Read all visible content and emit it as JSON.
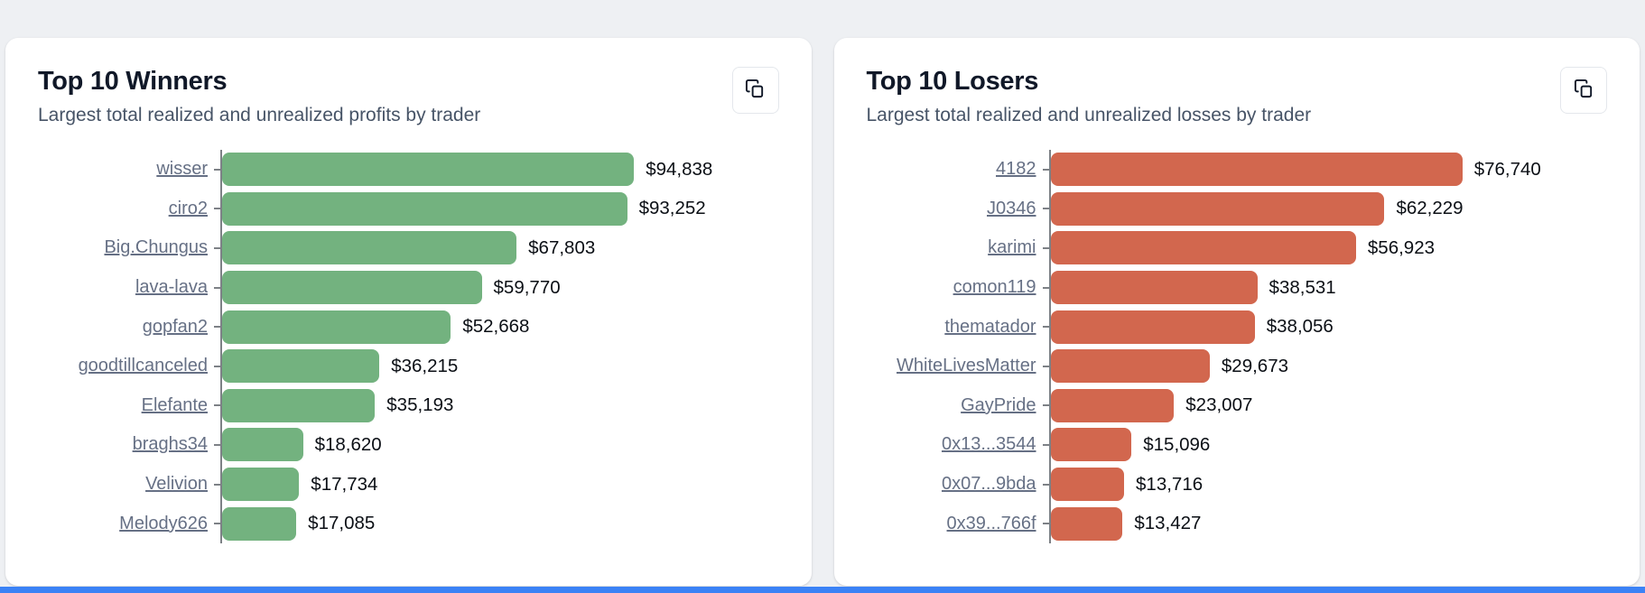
{
  "page": {
    "background_color": "#eef0f3",
    "bottom_bar_color": "#3b82f6"
  },
  "cards": [
    {
      "title": "Top 10 Winners",
      "subtitle": "Largest total realized and unrealized profits by trader",
      "copy_icon": "copy-icon",
      "bar_color": "#73b27f"
    },
    {
      "title": "Top 10 Losers",
      "subtitle": "Largest total realized and unrealized losses by trader",
      "copy_icon": "copy-icon",
      "bar_color": "#d2674e"
    }
  ],
  "chart_data": [
    {
      "type": "bar",
      "orientation": "horizontal",
      "title": "Top 10 Winners",
      "categories": [
        "wisser",
        "ciro2",
        "Big.Chungus",
        "lava-lava",
        "gopfan2",
        "goodtillcanceled",
        "Elefante",
        "braghs34",
        "Velivion",
        "Melody626"
      ],
      "values": [
        94838,
        93252,
        67803,
        59770,
        52668,
        36215,
        35193,
        18620,
        17734,
        17085
      ],
      "value_labels": [
        "$94,838",
        "$93,252",
        "$67,803",
        "$59,770",
        "$52,668",
        "$36,215",
        "$35,193",
        "$18,620",
        "$17,734",
        "$17,085"
      ],
      "bar_color": "#73b27f",
      "xlim": [
        0,
        128000
      ],
      "max_width_pct": 74,
      "grid": false,
      "legend": false
    },
    {
      "type": "bar",
      "orientation": "horizontal",
      "title": "Top 10 Losers",
      "categories": [
        "4182",
        "J0346",
        "karimi",
        "comon119",
        "thematador",
        "WhiteLivesMatter",
        "GayPride",
        "0x13...3544",
        "0x07...9bda",
        "0x39...766f"
      ],
      "values": [
        76740,
        62229,
        56923,
        38531,
        38056,
        29673,
        23007,
        15096,
        13716,
        13427
      ],
      "value_labels": [
        "$76,740",
        "$62,229",
        "$56,923",
        "$38,531",
        "$38,056",
        "$29,673",
        "$23,007",
        "$15,096",
        "$13,716",
        "$13,427"
      ],
      "bar_color": "#d2674e",
      "xlim": [
        0,
        104000
      ],
      "max_width_pct": 74,
      "grid": false,
      "legend": false
    }
  ]
}
